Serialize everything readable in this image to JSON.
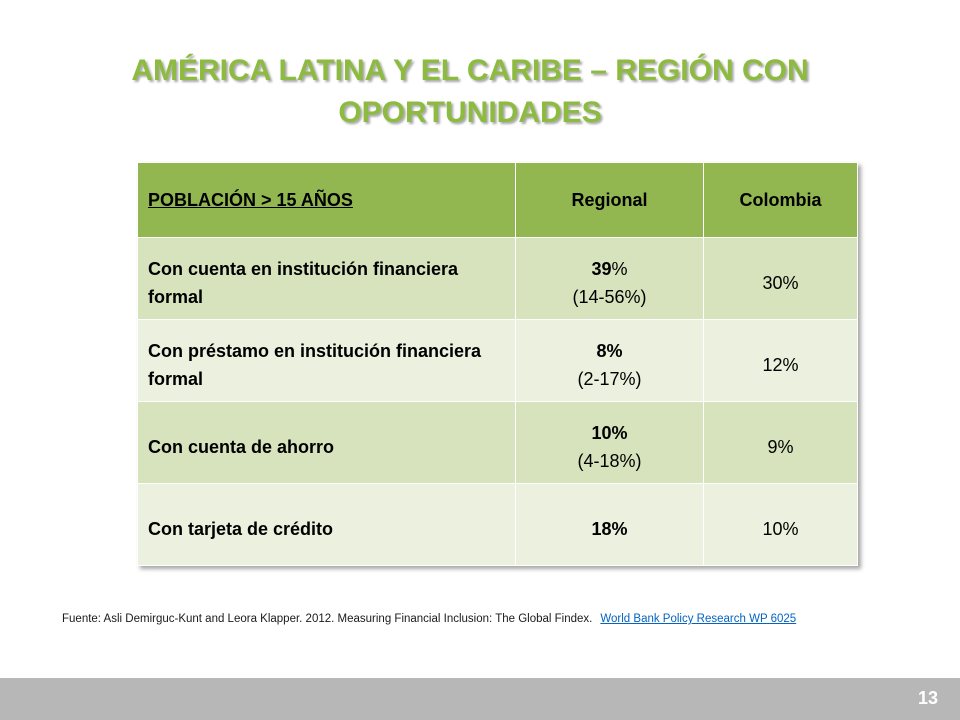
{
  "colors": {
    "title": "#8dbb3f",
    "header_bg": "#93b750",
    "row_dark": "#d6e3bd",
    "row_light": "#ebf1de",
    "footer_bar": "#b7b7b7",
    "link": "#0563c1"
  },
  "title": {
    "line1": "AMÉRICA LATINA Y EL CARIBE – REGIÓN CON",
    "line2": "OPORTUNIDADES"
  },
  "table": {
    "headers": [
      "POBLACIÓN > 15 AÑOS",
      "Regional",
      "Colombia"
    ],
    "rows": [
      {
        "label": "Con cuenta en institución financiera formal",
        "regional_value": "39",
        "regional_unit": "%",
        "regional_range": "(14-56%)",
        "colombia": "30%"
      },
      {
        "label": "Con préstamo en institución financiera formal",
        "regional_value": "8%",
        "regional_unit": "",
        "regional_range": "(2-17%)",
        "colombia": "12%"
      },
      {
        "label": "Con cuenta de ahorro",
        "regional_value": "10%",
        "regional_unit": "",
        "regional_range": "(4-18%)",
        "colombia": "9%"
      },
      {
        "label": "Con tarjeta de crédito",
        "regional_value": "18%",
        "regional_unit": "",
        "regional_range": "",
        "colombia": "10%"
      }
    ]
  },
  "source": {
    "text": "Fuente: Asli Demirguc-Kunt and Leora Klapper. 2012. Measuring Financial Inclusion: The Global Findex.",
    "link_text": "World Bank Policy Research WP 6025"
  },
  "page_number": "13"
}
